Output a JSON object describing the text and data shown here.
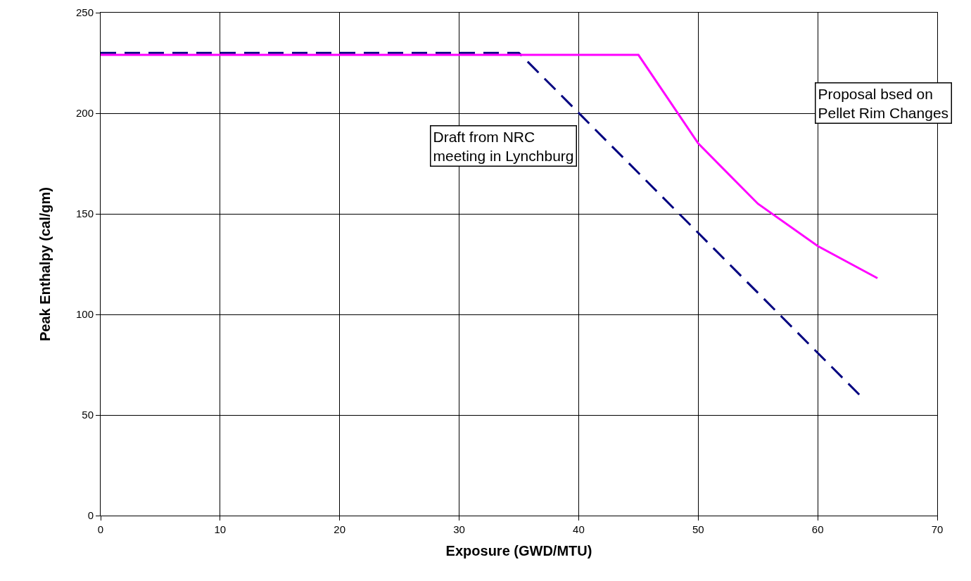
{
  "chart_data": {
    "type": "line",
    "xlabel": "Exposure (GWD/MTU)",
    "ylabel": "Peak Enthalpy (cal/gm)",
    "xlim": [
      0,
      70
    ],
    "xticks": [
      0,
      10,
      20,
      30,
      40,
      50,
      60,
      70
    ],
    "ylim": [
      0,
      250
    ],
    "yticks": [
      0,
      50,
      100,
      150,
      200,
      250
    ],
    "grid": true,
    "series": [
      {
        "color": "#000080",
        "line_style": "dashed",
        "x": [
          0,
          35,
          63.5
        ],
        "values": [
          230,
          230,
          60
        ]
      },
      {
        "color": "#ff00ff",
        "line_style": "solid",
        "x": [
          0,
          45,
          50,
          55,
          60,
          65
        ],
        "values": [
          229,
          229,
          185,
          155,
          134,
          118
        ]
      }
    ],
    "annotations": [
      "Draft from NRC\nmeeting in Lynchburg",
      "Proposal bsed on\nPellet Rim Changes"
    ]
  }
}
